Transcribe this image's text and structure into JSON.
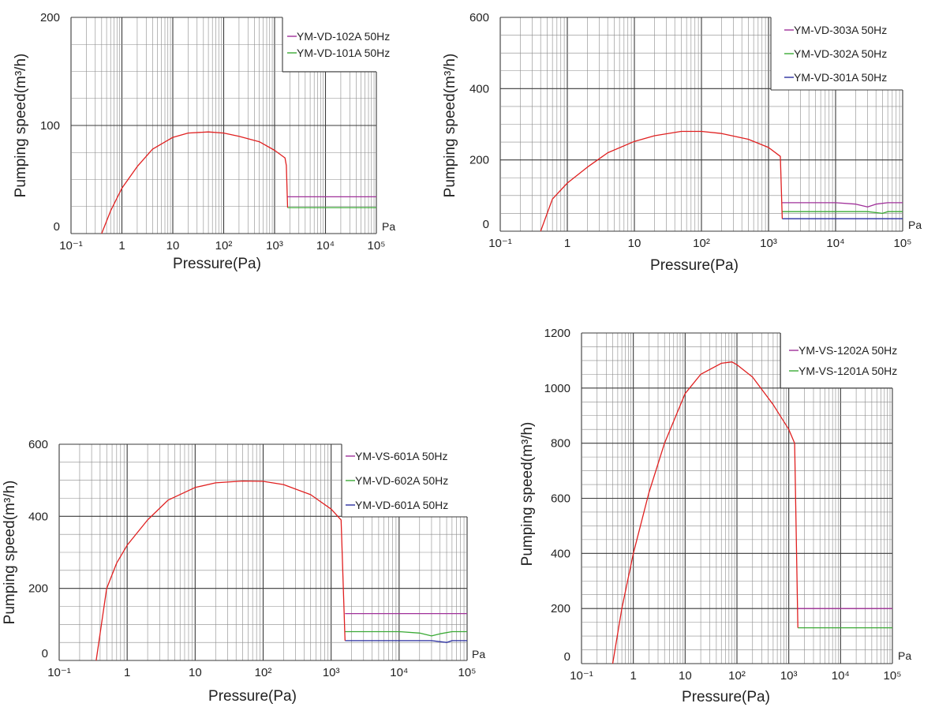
{
  "chart_data": [
    {
      "type": "line",
      "xlabel": "Pressure(Pa)",
      "ylabel": "Pumping speed(m³/h)",
      "x_unit": "Pa",
      "x_scale": "log",
      "xlim": [
        0.1,
        100000
      ],
      "ylim": [
        0,
        200
      ],
      "x_tick_labels": [
        "10⁻¹",
        "1",
        "10",
        "10²",
        "10³",
        "10⁴",
        "10⁵"
      ],
      "y_tick_labels": [
        "0",
        "100",
        "200"
      ],
      "grid": true,
      "legend_position": "top-right",
      "series": [
        {
          "name": "YM-VD-102A 50Hz",
          "color": "#a0309a",
          "x": [
            1800,
            100000
          ],
          "y": [
            34,
            34
          ]
        },
        {
          "name": "YM-VD-101A 50Hz",
          "color": "#3aaa35",
          "x": [
            1800,
            100000
          ],
          "y": [
            24,
            24
          ]
        },
        {
          "color": "#e02020",
          "x": [
            0.4,
            0.6,
            1,
            2,
            4,
            10,
            20,
            50,
            100,
            200,
            500,
            1000,
            1600,
            1700,
            1800
          ],
          "y": [
            0,
            21,
            42,
            62,
            78,
            89,
            93,
            94,
            93,
            90,
            85,
            77,
            70,
            63,
            24
          ]
        }
      ]
    },
    {
      "type": "line",
      "xlabel": "Pressure(Pa)",
      "ylabel": "Pumping speed(m³/h)",
      "x_unit": "Pa",
      "x_scale": "log",
      "xlim": [
        0.1,
        100000
      ],
      "ylim": [
        0,
        600
      ],
      "x_tick_labels": [
        "10⁻¹",
        "1",
        "10",
        "10²",
        "10³",
        "10⁴",
        "10⁵"
      ],
      "y_tick_labels": [
        "0",
        "200",
        "400",
        "600"
      ],
      "grid": true,
      "legend_position": "top-right",
      "series": [
        {
          "name": "YM-VD-303A 50Hz",
          "color": "#a0309a",
          "x": [
            1600,
            10000,
            20000,
            30000,
            40000,
            60000,
            100000
          ],
          "y": [
            80,
            80,
            76,
            68,
            76,
            80,
            80
          ]
        },
        {
          "name": "YM-VD-302A 50Hz",
          "color": "#3aaa35",
          "x": [
            1600,
            10000,
            30000,
            50000,
            60000,
            100000
          ],
          "y": [
            55,
            55,
            55,
            50,
            55,
            55
          ]
        },
        {
          "name": "YM-VD-301A 50Hz",
          "color": "#2a2fa0",
          "x": [
            1600,
            100000
          ],
          "y": [
            35,
            35
          ]
        },
        {
          "color": "#e02020",
          "x": [
            0.4,
            0.6,
            1,
            2,
            4,
            10,
            20,
            50,
            100,
            200,
            500,
            1000,
            1500,
            1600
          ],
          "y": [
            0,
            90,
            135,
            180,
            220,
            252,
            268,
            280,
            280,
            274,
            258,
            235,
            210,
            35
          ]
        }
      ]
    },
    {
      "type": "line",
      "xlabel": "Pressure(Pa)",
      "ylabel": "Pumping speed(m³/h)",
      "x_unit": "Pa",
      "x_scale": "log",
      "xlim": [
        0.1,
        100000
      ],
      "ylim": [
        0,
        600
      ],
      "x_tick_labels": [
        "10⁻¹",
        "1",
        "10",
        "10²",
        "10³",
        "10⁴",
        "10⁵"
      ],
      "y_tick_labels": [
        "0",
        "200",
        "400",
        "600"
      ],
      "grid": true,
      "legend_position": "top-right",
      "series": [
        {
          "name": "YM-VS-601A 50Hz",
          "color": "#a0309a",
          "x": [
            1600,
            100000
          ],
          "y": [
            130,
            130
          ]
        },
        {
          "name": "YM-VD-602A 50Hz",
          "color": "#3aaa35",
          "x": [
            1600,
            10000,
            20000,
            30000,
            40000,
            60000,
            100000
          ],
          "y": [
            80,
            80,
            76,
            68,
            74,
            80,
            80
          ]
        },
        {
          "name": "YM-VD-601A 50Hz",
          "color": "#2a2fa0",
          "x": [
            1600,
            10000,
            30000,
            50000,
            60000,
            100000
          ],
          "y": [
            55,
            55,
            55,
            50,
            55,
            55
          ]
        },
        {
          "color": "#e02020",
          "x": [
            0.35,
            0.5,
            0.7,
            1,
            2,
            4,
            10,
            20,
            50,
            100,
            200,
            500,
            1000,
            1400,
            1600
          ],
          "y": [
            0,
            200,
            270,
            320,
            390,
            445,
            480,
            493,
            498,
            497,
            488,
            460,
            420,
            390,
            55
          ]
        }
      ]
    },
    {
      "type": "line",
      "xlabel": "Pressure(Pa)",
      "ylabel": "Pumping speed(m³/h)",
      "x_unit": "Pa",
      "x_scale": "log",
      "xlim": [
        0.1,
        100000
      ],
      "ylim": [
        0,
        1200
      ],
      "x_tick_labels": [
        "10⁻¹",
        "1",
        "10",
        "10²",
        "10³",
        "10⁴",
        "10⁵"
      ],
      "y_tick_labels": [
        "0",
        "200",
        "400",
        "600",
        "800",
        "1000",
        "1200"
      ],
      "grid": true,
      "legend_position": "top-right",
      "series": [
        {
          "name": "YM-VS-1202A 50Hz",
          "color": "#a0309a",
          "x": [
            1500,
            100000
          ],
          "y": [
            200,
            200
          ]
        },
        {
          "name": "YM-VS-1201A 50Hz",
          "color": "#3aaa35",
          "x": [
            1500,
            100000
          ],
          "y": [
            130,
            130
          ]
        },
        {
          "color": "#e02020",
          "x": [
            0.4,
            0.6,
            1,
            2,
            4,
            10,
            20,
            50,
            80,
            100,
            200,
            500,
            1000,
            1300,
            1500
          ],
          "y": [
            0,
            200,
            400,
            620,
            800,
            980,
            1050,
            1090,
            1095,
            1085,
            1040,
            940,
            850,
            800,
            130
          ]
        }
      ]
    }
  ]
}
